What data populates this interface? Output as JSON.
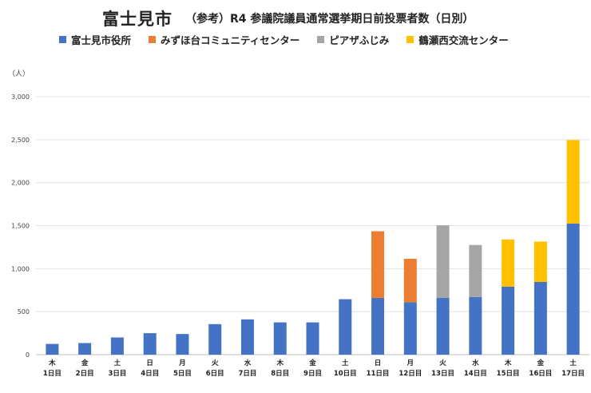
{
  "chart_data": {
    "type": "bar",
    "stacked": true,
    "title": "富士見市",
    "subtitle": "（参考）R4 参議院議員通常選挙期日前投票者数（日別）",
    "unit_label": "（人）",
    "ylim": [
      0,
      3000
    ],
    "yticks": [
      0,
      500,
      1000,
      1500,
      2000,
      2500,
      3000
    ],
    "ytick_labels": [
      "0",
      "500",
      "1,000",
      "1,500",
      "2,000",
      "2,500",
      "3,000"
    ],
    "grid": true,
    "legend_position": "top",
    "categories": [
      {
        "weekday": "木",
        "day": "1日目"
      },
      {
        "weekday": "金",
        "day": "2日目"
      },
      {
        "weekday": "土",
        "day": "3日目"
      },
      {
        "weekday": "日",
        "day": "4日目"
      },
      {
        "weekday": "月",
        "day": "5日目"
      },
      {
        "weekday": "火",
        "day": "6日目"
      },
      {
        "weekday": "水",
        "day": "7日目"
      },
      {
        "weekday": "木",
        "day": "8日目"
      },
      {
        "weekday": "金",
        "day": "9日目"
      },
      {
        "weekday": "土",
        "day": "10日目"
      },
      {
        "weekday": "日",
        "day": "11日目"
      },
      {
        "weekday": "月",
        "day": "12日目"
      },
      {
        "weekday": "火",
        "day": "13日目"
      },
      {
        "weekday": "水",
        "day": "14日目"
      },
      {
        "weekday": "木",
        "day": "15日目"
      },
      {
        "weekday": "金",
        "day": "16日目"
      },
      {
        "weekday": "土",
        "day": "17日目"
      }
    ],
    "series": [
      {
        "name": "富士見市役所",
        "color": "#4472C4",
        "values": [
          125,
          135,
          200,
          250,
          240,
          355,
          410,
          375,
          375,
          645,
          660,
          610,
          660,
          670,
          790,
          845,
          1525
        ]
      },
      {
        "name": "みずほ台コミュニティセンター",
        "color": "#ED7D31",
        "values": [
          0,
          0,
          0,
          0,
          0,
          0,
          0,
          0,
          0,
          0,
          775,
          505,
          0,
          0,
          0,
          0,
          0
        ]
      },
      {
        "name": "ピアザふじみ",
        "color": "#A5A5A5",
        "values": [
          0,
          0,
          0,
          0,
          0,
          0,
          0,
          0,
          0,
          0,
          0,
          0,
          845,
          605,
          0,
          0,
          0
        ]
      },
      {
        "name": "鶴瀬西交流センター",
        "color": "#FFC000",
        "values": [
          0,
          0,
          0,
          0,
          0,
          0,
          0,
          0,
          0,
          0,
          0,
          0,
          0,
          0,
          550,
          470,
          970
        ]
      }
    ]
  }
}
